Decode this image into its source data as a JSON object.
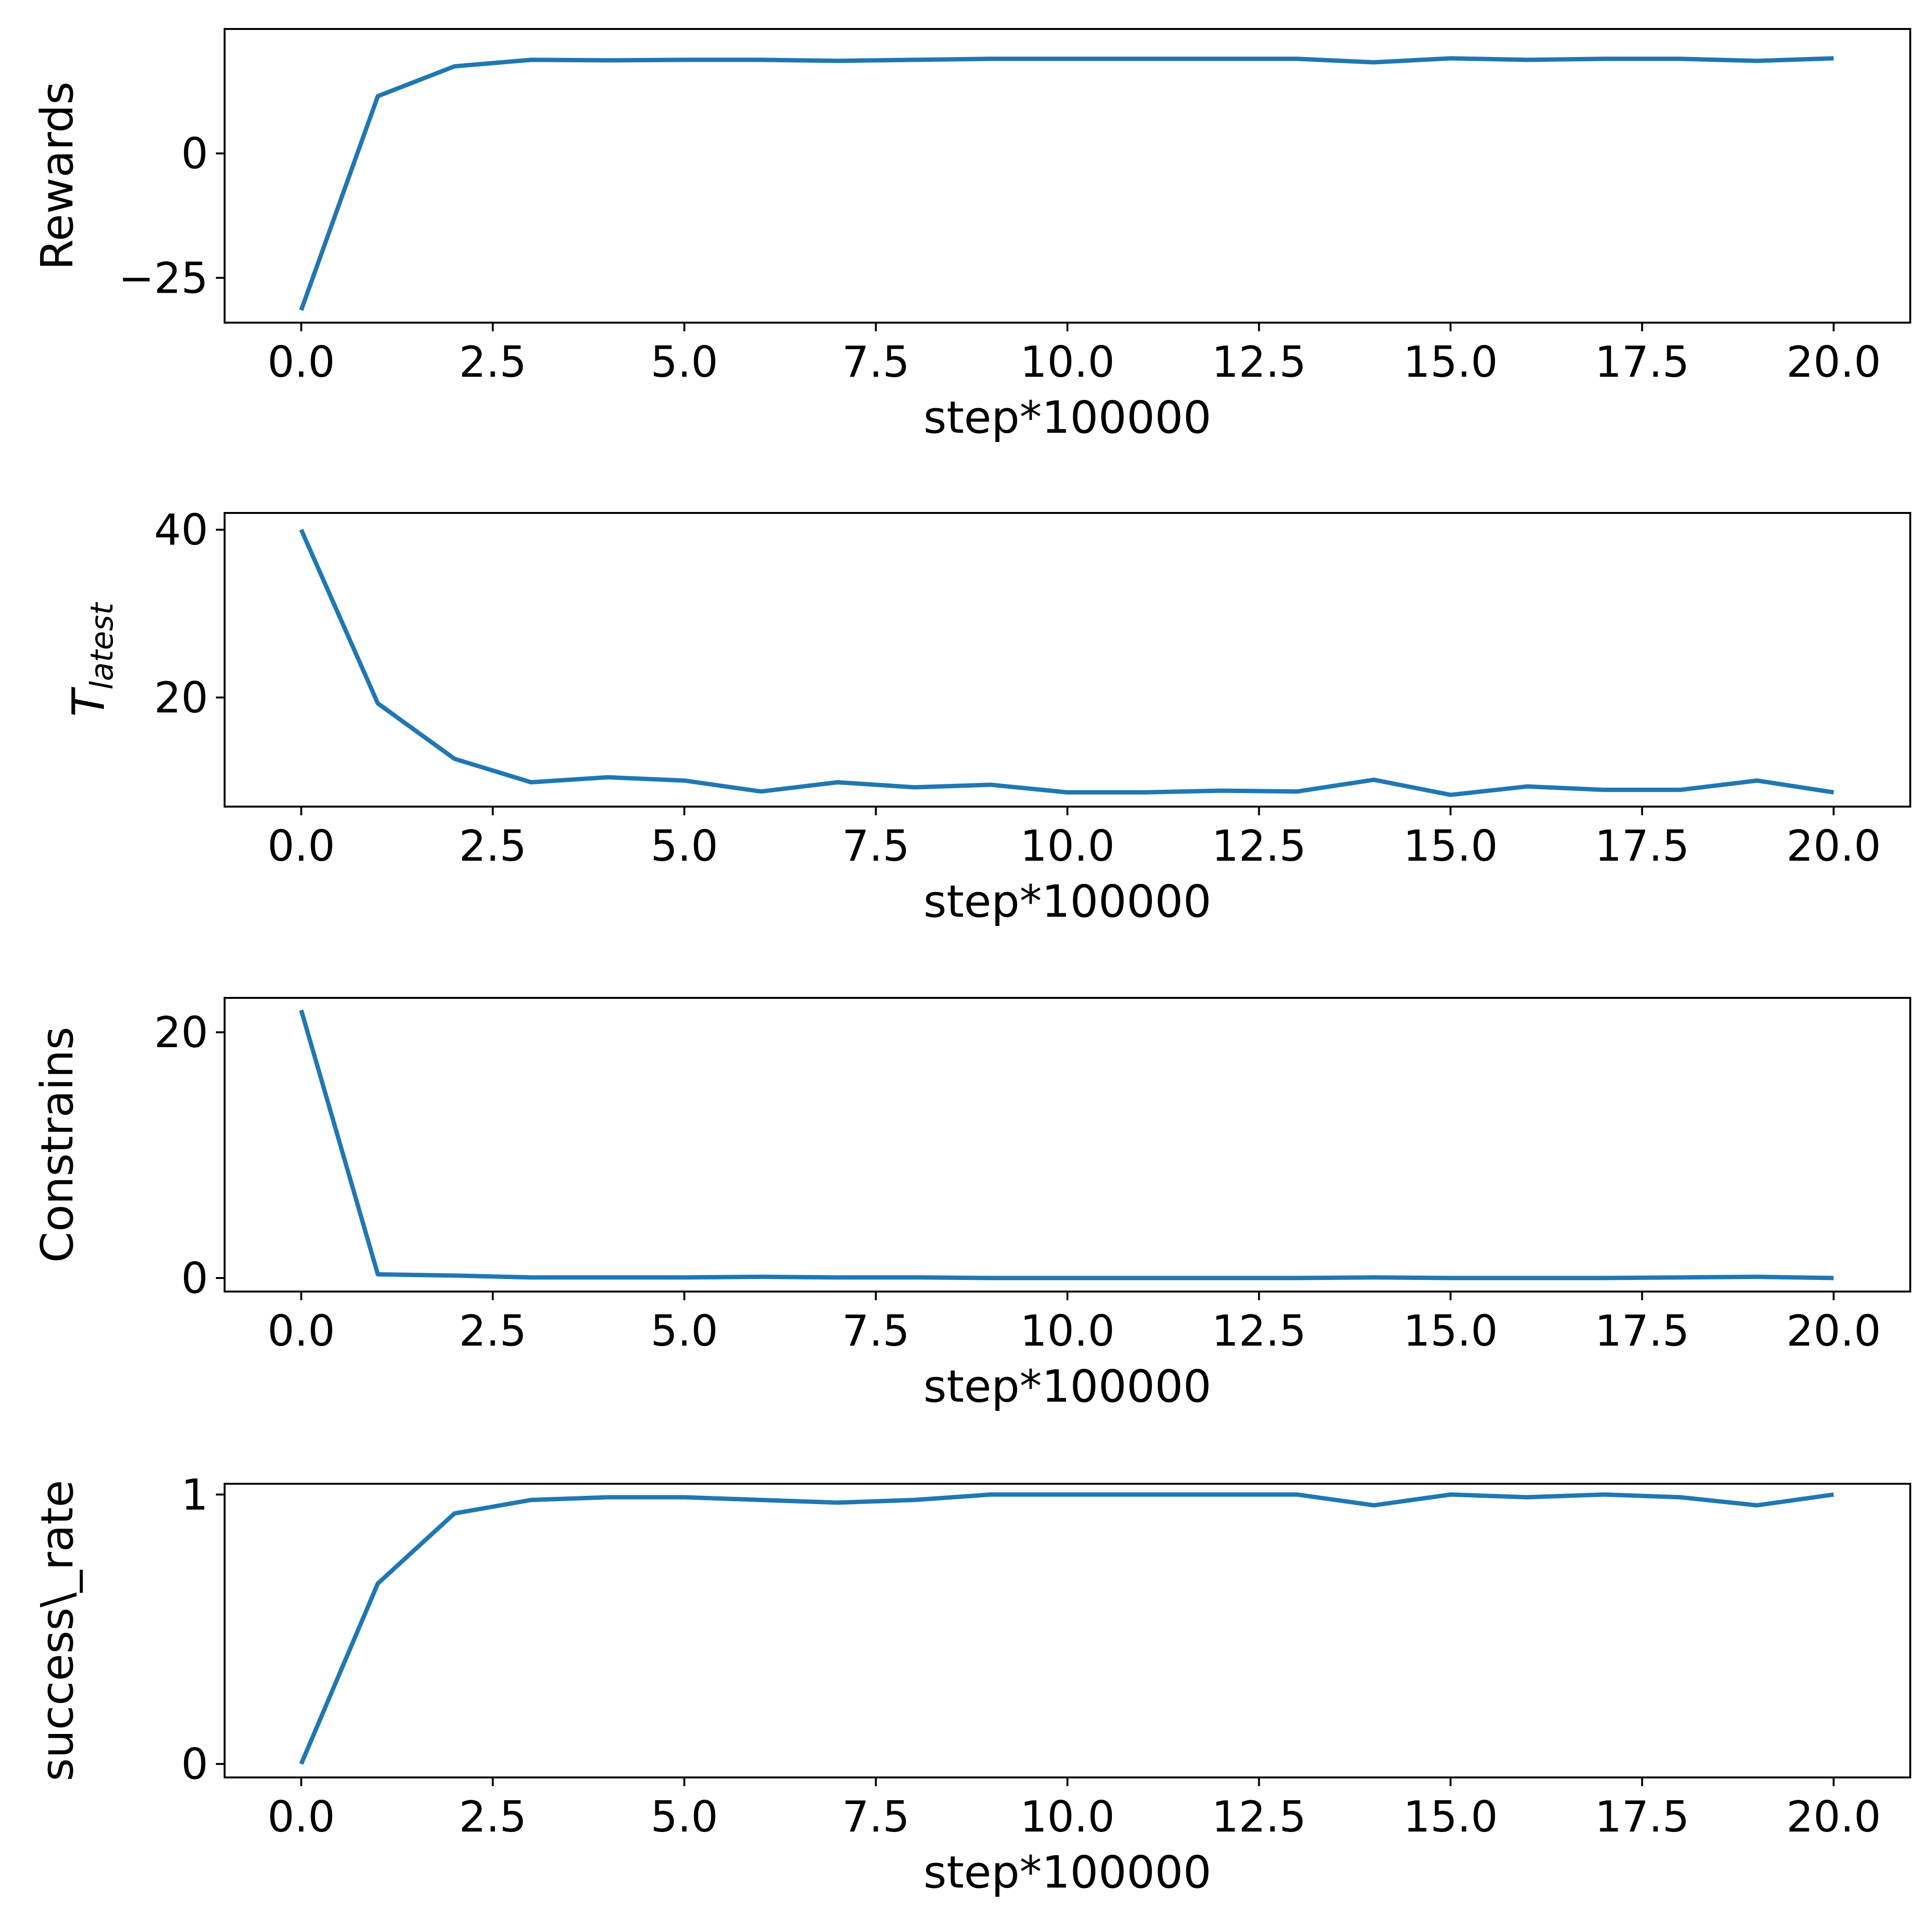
{
  "figure": {
    "background": "#ffffff"
  },
  "chart_data": [
    {
      "type": "line",
      "xlabel": "step*100000",
      "ylabel": "Rewards",
      "xlim": [
        -1,
        21
      ],
      "ylim": [
        -34,
        25
      ],
      "xticks": [
        0.0,
        2.5,
        5.0,
        7.5,
        10.0,
        12.5,
        15.0,
        17.5,
        20.0
      ],
      "xtick_labels": [
        "0.0",
        "2.5",
        "5.0",
        "7.5",
        "10.0",
        "12.5",
        "15.0",
        "17.5",
        "20.0"
      ],
      "yticks": [
        -25,
        0
      ],
      "ytick_labels": [
        "−25",
        "0"
      ],
      "grid": false,
      "series": [
        {
          "color": "#1f77b4",
          "x": [
            0,
            1,
            2,
            3,
            4,
            5,
            6,
            7,
            8,
            9,
            10,
            11,
            12,
            13,
            14,
            15,
            16,
            17,
            18,
            19,
            20
          ],
          "y": [
            -31.5,
            11.5,
            17.5,
            18.8,
            18.7,
            18.8,
            18.8,
            18.6,
            18.8,
            19.0,
            19.0,
            19.0,
            19.0,
            19.0,
            18.3,
            19.1,
            18.8,
            19.0,
            19.0,
            18.6,
            19.1
          ]
        }
      ]
    },
    {
      "type": "line",
      "xlabel": "step*100000",
      "ylabel": "T",
      "ylabel_subscript": "latest",
      "xlim": [
        -1,
        21
      ],
      "ylim": [
        7,
        42
      ],
      "xticks": [
        0.0,
        2.5,
        5.0,
        7.5,
        10.0,
        12.5,
        15.0,
        17.5,
        20.0
      ],
      "xtick_labels": [
        "0.0",
        "2.5",
        "5.0",
        "7.5",
        "10.0",
        "12.5",
        "15.0",
        "17.5",
        "20.0"
      ],
      "yticks": [
        20,
        40
      ],
      "ytick_labels": [
        "20",
        "40"
      ],
      "grid": false,
      "series": [
        {
          "color": "#1f77b4",
          "x": [
            0,
            1,
            2,
            3,
            4,
            5,
            6,
            7,
            8,
            9,
            10,
            11,
            12,
            13,
            14,
            15,
            16,
            17,
            18,
            19,
            20
          ],
          "y": [
            40.0,
            19.3,
            12.7,
            9.9,
            10.5,
            10.1,
            8.8,
            9.9,
            9.3,
            9.6,
            8.7,
            8.7,
            8.9,
            8.8,
            10.2,
            8.4,
            9.4,
            9.0,
            9.0,
            10.1,
            8.7
          ]
        }
      ]
    },
    {
      "type": "line",
      "xlabel": "step*100000",
      "ylabel": "Constrains",
      "xlim": [
        -1,
        21
      ],
      "ylim": [
        -1.1,
        22.8
      ],
      "xticks": [
        0.0,
        2.5,
        5.0,
        7.5,
        10.0,
        12.5,
        15.0,
        17.5,
        20.0
      ],
      "xtick_labels": [
        "0.0",
        "2.5",
        "5.0",
        "7.5",
        "10.0",
        "12.5",
        "15.0",
        "17.5",
        "20.0"
      ],
      "yticks": [
        0,
        20
      ],
      "ytick_labels": [
        "0",
        "20"
      ],
      "grid": false,
      "series": [
        {
          "color": "#1f77b4",
          "x": [
            0,
            1,
            2,
            3,
            4,
            5,
            6,
            7,
            8,
            9,
            10,
            11,
            12,
            13,
            14,
            15,
            16,
            17,
            18,
            19,
            20
          ],
          "y": [
            21.8,
            0.3,
            0.2,
            0.05,
            0.05,
            0.05,
            0.1,
            0.05,
            0.05,
            0.0,
            0.0,
            0.0,
            0.0,
            0.0,
            0.05,
            0.0,
            0.0,
            0.0,
            0.05,
            0.1,
            0.0
          ]
        }
      ]
    },
    {
      "type": "line",
      "xlabel": "step*100000",
      "ylabel": "success\\_rate",
      "xlim": [
        -1,
        21
      ],
      "ylim": [
        -0.05,
        1.04
      ],
      "xticks": [
        0.0,
        2.5,
        5.0,
        7.5,
        10.0,
        12.5,
        15.0,
        17.5,
        20.0
      ],
      "xtick_labels": [
        "0.0",
        "2.5",
        "5.0",
        "7.5",
        "10.0",
        "12.5",
        "15.0",
        "17.5",
        "20.0"
      ],
      "yticks": [
        0,
        1
      ],
      "ytick_labels": [
        "0",
        "1"
      ],
      "grid": false,
      "series": [
        {
          "color": "#1f77b4",
          "x": [
            0,
            1,
            2,
            3,
            4,
            5,
            6,
            7,
            8,
            9,
            10,
            11,
            12,
            13,
            14,
            15,
            16,
            17,
            18,
            19,
            20
          ],
          "y": [
            0.0,
            0.67,
            0.93,
            0.98,
            0.99,
            0.99,
            0.98,
            0.97,
            0.98,
            1.0,
            1.0,
            1.0,
            1.0,
            1.0,
            0.96,
            1.0,
            0.99,
            1.0,
            0.99,
            0.96,
            1.0
          ]
        }
      ]
    }
  ]
}
